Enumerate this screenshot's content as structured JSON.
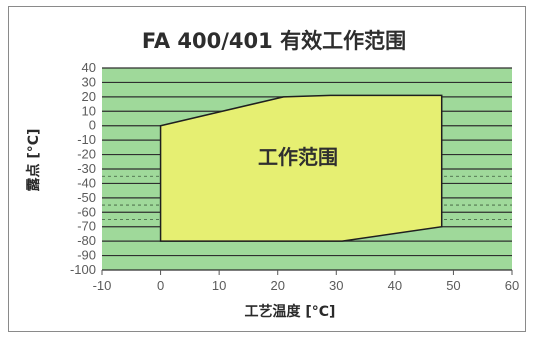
{
  "chart_data": {
    "type": "area",
    "title": "FA 400/401 有效工作范围",
    "xlabel": "工艺温度 [°C]",
    "ylabel": "露点 [°C]",
    "xlim": [
      -10,
      60
    ],
    "ylim": [
      -100,
      40
    ],
    "x_ticks": [
      "-10",
      "0",
      "10",
      "20",
      "30",
      "40",
      "50",
      "60"
    ],
    "y_ticks": [
      "40",
      "30",
      "20",
      "10",
      "0",
      "-10",
      "-20",
      "-30",
      "-40",
      "-50",
      "-60",
      "-70",
      "-80",
      "-90",
      "-100"
    ],
    "region_label": "工作范围",
    "series": [
      {
        "name": "工作范围",
        "points": [
          {
            "x": 0,
            "y": -80
          },
          {
            "x": 0,
            "y": 0
          },
          {
            "x": 21,
            "y": 20
          },
          {
            "x": 29,
            "y": 21
          },
          {
            "x": 48,
            "y": 21
          },
          {
            "x": 48,
            "y": -70
          },
          {
            "x": 31,
            "y": -80
          },
          {
            "x": 0,
            "y": -80
          }
        ]
      }
    ],
    "grid": true,
    "colors": {
      "plot_background": "#9fd99a",
      "grid_line": "#2f2f2f",
      "region_fill": "#e6ef72",
      "region_stroke": "#1f1f1f"
    }
  }
}
